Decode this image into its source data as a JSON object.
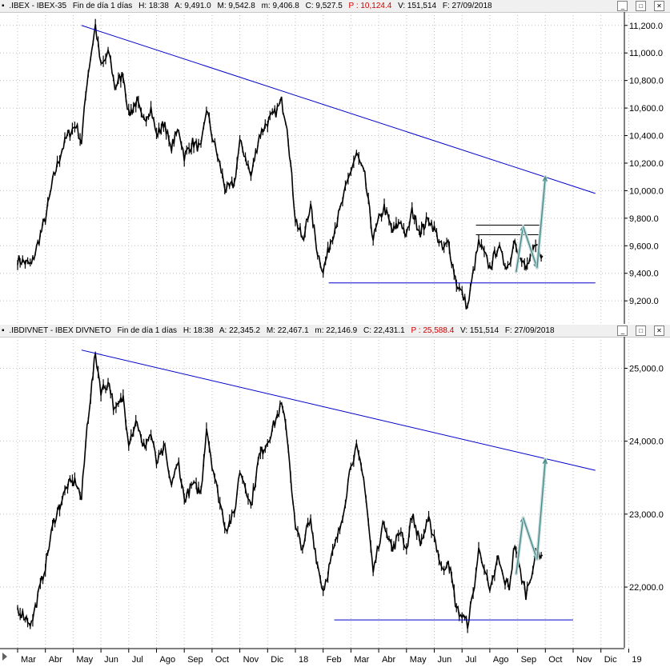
{
  "panels": [
    {
      "header": {
        "symbol": ".IBEX - IBEX-35",
        "period": "Fin de día 1 días",
        "H": "H: 18:38",
        "A": "A: 9,491.0",
        "M": "M: 9,542.8",
        "m": "m: 9,406.8",
        "C": "C: 9,527.5",
        "P": "P : 10,124.4",
        "V": "V: 151,514",
        "F": "F: 27/09/2018"
      }
    },
    {
      "header": {
        "symbol": ".IBDIVNET - IBEX DIVNETO",
        "period": "Fin de día 1 días",
        "H": "H: 18:38",
        "A": "A: 22,345.2",
        "M": "M: 22,467.1",
        "m": "m: 22,146.9",
        "C": "C: 22,431.1",
        "P": "P : 25,588.4",
        "V": "V: 151,514",
        "F": "F: 27/09/2018"
      }
    }
  ],
  "window_buttons": [
    "_",
    "□",
    "✕"
  ],
  "colors": {
    "price": "#000000",
    "trendline": "#0000cc",
    "support": "#0000cc",
    "projection": "#4a8a8a",
    "header_red": "#d00000"
  },
  "chart_data": [
    {
      "type": "line",
      "title": ".IBEX - IBEX-35",
      "x_ticks": [
        "Mar",
        "Abr",
        "May",
        "Jun",
        "Jul",
        "Ago",
        "Sep",
        "Oct",
        "Nov",
        "Dic",
        "18",
        "Feb",
        "Mar",
        "Abr",
        "May",
        "Jun",
        "Jul",
        "Ago",
        "Sep",
        "Oct",
        "Nov",
        "Dic",
        "19"
      ],
      "y_ticks": [
        "11,200.0",
        "11,000.0",
        "10,800.0",
        "10,600.0",
        "10,400.0",
        "10,200.0",
        "10,000.0",
        "9,800.0",
        "9,600.0",
        "9,400.0",
        "9,200.0"
      ],
      "y_values": [
        11200,
        11000,
        10800,
        10600,
        10400,
        10200,
        10000,
        9800,
        9600,
        9400,
        9200
      ],
      "ylim": [
        9050,
        11280
      ],
      "series": [
        {
          "x": [
            0,
            0.5,
            1,
            1.3,
            1.6,
            1.8,
            2.1,
            2.3,
            2.5,
            2.8,
            3.0,
            3.3,
            3.5,
            3.8,
            4.0,
            4.3,
            4.5,
            4.8,
            5.0,
            5.3,
            5.5,
            5.8,
            6.0,
            6.3,
            6.6,
            6.8,
            7.0,
            7.2,
            7.5,
            7.8,
            8.0,
            8.2,
            8.4,
            8.7,
            9.0,
            9.3,
            9.5,
            9.7,
            10.0,
            10.3,
            10.4,
            10.55,
            10.8,
            11.0,
            11.3,
            11.6,
            11.8,
            12.0,
            12.2,
            12.5,
            12.8,
            13.0,
            13.2,
            13.5,
            13.8,
            14.0,
            14.2,
            14.5,
            14.8,
            15.0,
            15.3,
            15.5,
            15.8,
            16.0,
            16.2,
            16.4,
            16.6,
            16.8,
            17.0,
            17.3,
            17.5,
            17.7,
            17.9,
            18.1,
            18.3,
            18.5,
            18.7,
            18.9
          ],
          "values": [
            9500,
            9460,
            9800,
            10100,
            10300,
            10400,
            10480,
            10350,
            10800,
            11200,
            10900,
            11000,
            10750,
            10850,
            10550,
            10650,
            10500,
            10600,
            10400,
            10500,
            10300,
            10450,
            10250,
            10350,
            10300,
            10600,
            10400,
            10250,
            10000,
            10050,
            10350,
            10250,
            10100,
            10400,
            10500,
            10570,
            10650,
            10480,
            9800,
            9620,
            9800,
            9880,
            9550,
            9420,
            9650,
            9850,
            10000,
            10150,
            10270,
            10100,
            9650,
            9780,
            9880,
            9700,
            9780,
            9660,
            9850,
            9700,
            9800,
            9720,
            9570,
            9620,
            9330,
            9250,
            9150,
            9400,
            9620,
            9540,
            9440,
            9600,
            9480,
            9460,
            9660,
            9500,
            9430,
            9530,
            9600,
            9527.5
          ]
        }
      ],
      "trendline": {
        "x": [
          2.3,
          20.8
        ],
        "values": [
          11200,
          9980
        ]
      },
      "support": {
        "x": [
          11.2,
          20.8
        ],
        "value": 9330
      },
      "resistance_lines": [
        {
          "x": [
            16.5,
            18.8
          ],
          "value": 9750
        },
        {
          "x": [
            16.5,
            18.8
          ],
          "value": 9680
        }
      ],
      "projection": {
        "x": [
          17.95,
          18.2,
          18.7,
          19.0
        ],
        "values": [
          9410,
          9740,
          9440,
          10100
        ]
      }
    },
    {
      "type": "line",
      "title": ".IBDIVNET - IBEX DIVNETO",
      "x_ticks": [
        "Mar",
        "Abr",
        "May",
        "Jun",
        "Jul",
        "Ago",
        "Sep",
        "Oct",
        "Nov",
        "Dic",
        "18",
        "Feb",
        "Mar",
        "Abr",
        "May",
        "Jun",
        "Jul",
        "Ago",
        "Sep",
        "Oct",
        "Nov",
        "Dic",
        "19"
      ],
      "y_ticks": [
        "25,000.0",
        "24,000.0",
        "23,000.0",
        "22,000.0"
      ],
      "y_values": [
        25000,
        24000,
        23000,
        22000
      ],
      "ylim": [
        21200,
        25400
      ],
      "series": [
        {
          "x": [
            0,
            0.5,
            1,
            1.3,
            1.6,
            1.8,
            2.1,
            2.3,
            2.5,
            2.8,
            3.0,
            3.3,
            3.5,
            3.8,
            4.0,
            4.3,
            4.5,
            4.8,
            5.0,
            5.3,
            5.5,
            5.8,
            6.0,
            6.3,
            6.6,
            6.8,
            7.0,
            7.2,
            7.5,
            7.8,
            8.0,
            8.2,
            8.4,
            8.7,
            9.0,
            9.3,
            9.5,
            9.7,
            10.0,
            10.3,
            10.4,
            10.55,
            10.8,
            11.0,
            11.3,
            11.6,
            11.8,
            12.0,
            12.2,
            12.5,
            12.8,
            13.0,
            13.2,
            13.5,
            13.8,
            14.0,
            14.2,
            14.5,
            14.8,
            15.0,
            15.3,
            15.5,
            15.8,
            16.0,
            16.2,
            16.4,
            16.6,
            16.8,
            17.0,
            17.3,
            17.5,
            17.7,
            17.9,
            18.1,
            18.3,
            18.5,
            18.7,
            18.9
          ],
          "values": [
            21700,
            21500,
            22300,
            22900,
            23200,
            23400,
            23450,
            23200,
            24200,
            25200,
            24700,
            24800,
            24400,
            24600,
            24000,
            24300,
            23900,
            24100,
            23700,
            23900,
            23400,
            23700,
            23200,
            23400,
            23300,
            24200,
            23700,
            23300,
            22800,
            23000,
            23600,
            23400,
            23100,
            23800,
            24000,
            24300,
            24500,
            24100,
            22800,
            22500,
            22800,
            22900,
            22300,
            21950,
            22400,
            22800,
            23200,
            23700,
            23900,
            23400,
            22200,
            22600,
            22900,
            22500,
            22800,
            22500,
            23000,
            22600,
            22900,
            22700,
            22200,
            22400,
            21700,
            21600,
            21500,
            21900,
            22500,
            22300,
            21900,
            22400,
            22100,
            22000,
            22600,
            22200,
            21900,
            22200,
            22500,
            22431.1
          ]
        }
      ],
      "trendline": {
        "x": [
          2.3,
          20.8
        ],
        "values": [
          25250,
          23600
        ]
      },
      "support": {
        "x": [
          11.4,
          20.0
        ],
        "value": 21550
      },
      "projection": {
        "x": [
          17.95,
          18.2,
          18.7,
          19.0
        ],
        "values": [
          22180,
          22950,
          22380,
          23750
        ]
      }
    }
  ]
}
